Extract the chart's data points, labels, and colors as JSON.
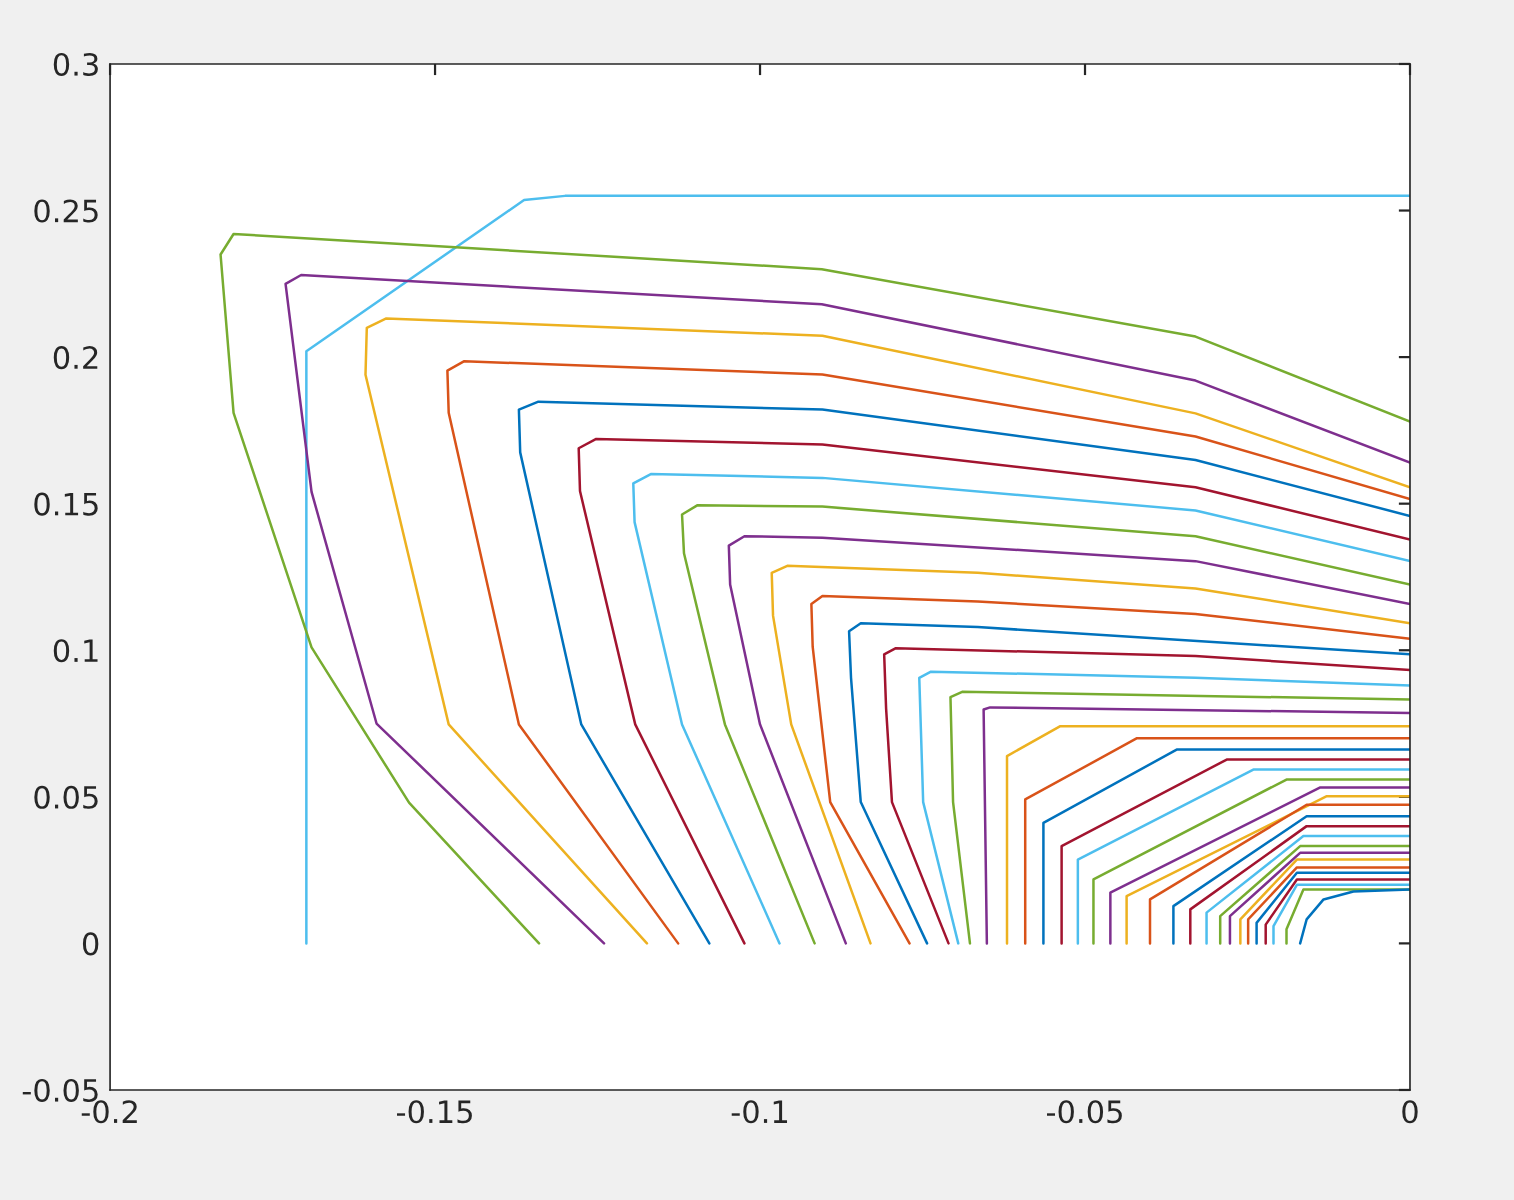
{
  "chart_data": {
    "type": "line",
    "xlim": [
      -0.2,
      0
    ],
    "ylim": [
      -0.05,
      0.3
    ],
    "xticks": [
      -0.2,
      -0.15,
      -0.1,
      -0.05,
      0
    ],
    "yticks": [
      -0.05,
      0,
      0.05,
      0.1,
      0.15,
      0.2,
      0.25,
      0.3
    ],
    "grid": false,
    "marker": "none",
    "line_style": "solid",
    "series": [
      {
        "color": "#4dbeee",
        "x": [
          -0.1698,
          -0.1698,
          -0.1363,
          -0.13,
          0
        ],
        "values": [
          0,
          0.202,
          0.2536,
          0.255,
          0.255
        ]
      },
      {
        "color": "#77ac30",
        "x": [
          -0.134,
          -0.154,
          -0.169,
          -0.181,
          -0.183,
          -0.181,
          -0.0905,
          -0.033,
          0
        ],
        "values": [
          0,
          0.048,
          0.101,
          0.181,
          0.235,
          0.242,
          0.23,
          0.207,
          0.178
        ]
      },
      {
        "color": "#7e2f8e",
        "x": [
          -0.124,
          -0.159,
          -0.169,
          -0.173,
          -0.1706,
          -0.0905,
          -0.033,
          0
        ],
        "values": [
          0,
          0.075,
          0.154,
          0.225,
          0.228,
          0.218,
          0.192,
          0.164
        ]
      },
      {
        "color": "#edb120",
        "x": [
          -0.1174,
          -0.1479,
          -0.1607,
          -0.1605,
          -0.1575,
          -0.0904,
          -0.033,
          0
        ],
        "values": [
          0,
          0.0747,
          0.194,
          0.21,
          0.2132,
          0.2073,
          0.1808,
          0.1556
        ]
      },
      {
        "color": "#d95319",
        "x": [
          -0.1126,
          -0.1371,
          -0.1479,
          -0.1481,
          -0.1455,
          -0.0904,
          -0.033,
          0
        ],
        "values": [
          0,
          0.0747,
          0.181,
          0.1954,
          0.1986,
          0.1941,
          0.1729,
          0.1516
        ]
      },
      {
        "color": "#0072bd",
        "x": [
          -0.1078,
          -0.1275,
          -0.1369,
          -0.1371,
          -0.1341,
          -0.0904,
          -0.033,
          0
        ],
        "values": [
          0,
          0.0747,
          0.1675,
          0.1821,
          0.1848,
          0.1821,
          0.1649,
          0.1458
        ]
      },
      {
        "color": "#a2142f",
        "x": [
          -0.1024,
          -0.1192,
          -0.1277,
          -0.1279,
          -0.1252,
          -0.0904,
          -0.033,
          0
        ],
        "values": [
          0,
          0.0747,
          0.1543,
          0.1689,
          0.1721,
          0.1702,
          0.1556,
          0.1378
        ]
      },
      {
        "color": "#4dbeee",
        "x": [
          -0.097,
          -0.112,
          -0.1193,
          -0.1195,
          -0.1168,
          -0.0904,
          -0.033,
          0
        ],
        "values": [
          0,
          0.0747,
          0.1437,
          0.1569,
          0.1601,
          0.1588,
          0.1477,
          0.1304
        ]
      },
      {
        "color": "#77ac30",
        "x": [
          -0.0916,
          -0.1054,
          -0.1117,
          -0.112,
          -0.1096,
          -0.0904,
          -0.033,
          0
        ],
        "values": [
          0,
          0.0747,
          0.1331,
          0.1463,
          0.1495,
          0.149,
          0.1389,
          0.1224
        ]
      },
      {
        "color": "#7e2f8e",
        "x": [
          -0.0868,
          -0.1,
          -0.1046,
          -0.1048,
          -0.1024,
          -0.0904,
          -0.033,
          0
        ],
        "values": [
          0,
          0.0747,
          0.1224,
          0.1357,
          0.1389,
          0.1384,
          0.1304,
          0.1158
        ]
      },
      {
        "color": "#edb120",
        "x": [
          -0.083,
          -0.0952,
          -0.098,
          -0.0982,
          -0.0958,
          -0.0665,
          -0.033,
          0
        ],
        "values": [
          0,
          0.0747,
          0.1118,
          0.1264,
          0.1288,
          0.1264,
          0.1211,
          0.1092
        ]
      },
      {
        "color": "#d95319",
        "x": [
          -0.077,
          -0.0892,
          -0.0919,
          -0.0921,
          -0.0904,
          -0.0665,
          -0.033,
          0
        ],
        "values": [
          0,
          0.0482,
          0.1012,
          0.1158,
          0.1185,
          0.1166,
          0.1124,
          0.1039
        ]
      },
      {
        "color": "#0072bd",
        "x": [
          -0.0743,
          -0.0845,
          -0.086,
          -0.0863,
          -0.0845,
          -0.0665,
          0
        ],
        "values": [
          0,
          0.0482,
          0.0906,
          0.1065,
          0.1092,
          0.1079,
          0.0986
        ]
      },
      {
        "color": "#a2142f",
        "x": [
          -0.071,
          -0.0797,
          -0.0806,
          -0.0809,
          -0.0791,
          -0.033,
          0
        ],
        "values": [
          0,
          0.0482,
          0.08,
          0.0986,
          0.1007,
          0.098,
          0.0933
        ]
      },
      {
        "color": "#4dbeee",
        "x": [
          -0.0695,
          -0.0749,
          -0.0755,
          -0.0737,
          -0.033,
          0
        ],
        "values": [
          0,
          0.0482,
          0.0906,
          0.0927,
          0.0906,
          0.088
        ]
      },
      {
        "color": "#77ac30",
        "x": [
          -0.0677,
          -0.0703,
          -0.0707,
          -0.0689,
          0
        ],
        "values": [
          0,
          0.0482,
          0.084,
          0.0858,
          0.0832
        ]
      },
      {
        "color": "#7e2f8e",
        "x": [
          -0.0651,
          -0.0656,
          -0.0646,
          0
        ],
        "values": [
          0,
          0.0798,
          0.0805,
          0.0786
        ]
      },
      {
        "color": "#edb120",
        "x": [
          -0.062,
          -0.062,
          -0.0538,
          0
        ],
        "values": [
          0,
          0.0639,
          0.0741,
          0.0741
        ]
      },
      {
        "color": "#d95319",
        "x": [
          -0.0592,
          -0.0592,
          -0.042,
          0
        ],
        "values": [
          0,
          0.0491,
          0.07,
          0.07
        ]
      },
      {
        "color": "#0072bd",
        "x": [
          -0.0564,
          -0.0564,
          -0.0359,
          0
        ],
        "values": [
          0,
          0.0411,
          0.0661,
          0.0661
        ]
      },
      {
        "color": "#a2142f",
        "x": [
          -0.0536,
          -0.0536,
          -0.0282,
          0
        ],
        "values": [
          0,
          0.0332,
          0.0627,
          0.0627
        ]
      },
      {
        "color": "#4dbeee",
        "x": [
          -0.0511,
          -0.0511,
          -0.0241,
          0
        ],
        "values": [
          0,
          0.0286,
          0.0593,
          0.0593
        ]
      },
      {
        "color": "#77ac30",
        "x": [
          -0.0487,
          -0.0487,
          -0.019,
          0
        ],
        "values": [
          0,
          0.0218,
          0.0559,
          0.0559
        ]
      },
      {
        "color": "#7e2f8e",
        "x": [
          -0.0461,
          -0.0461,
          -0.0138,
          0
        ],
        "values": [
          0,
          0.0173,
          0.0532,
          0.0532
        ]
      },
      {
        "color": "#edb120",
        "x": [
          -0.0436,
          -0.0436,
          -0.0128,
          0
        ],
        "values": [
          0,
          0.0161,
          0.0502,
          0.0502
        ]
      },
      {
        "color": "#d95319",
        "x": [
          -0.04,
          -0.04,
          -0.0159,
          0
        ],
        "values": [
          0,
          0.015,
          0.0473,
          0.0473
        ]
      },
      {
        "color": "#0072bd",
        "x": [
          -0.0364,
          -0.0364,
          -0.0159,
          0
        ],
        "values": [
          0,
          0.0127,
          0.0434,
          0.0434
        ]
      },
      {
        "color": "#a2142f",
        "x": [
          -0.0338,
          -0.0338,
          -0.0159,
          0
        ],
        "values": [
          0,
          0.0116,
          0.04,
          0.04
        ]
      },
      {
        "color": "#4dbeee",
        "x": [
          -0.0313,
          -0.0313,
          -0.0164,
          0
        ],
        "values": [
          0,
          0.0105,
          0.0366,
          0.0366
        ]
      },
      {
        "color": "#77ac30",
        "x": [
          -0.0292,
          -0.0292,
          -0.0169,
          0
        ],
        "values": [
          0,
          0.0093,
          0.0332,
          0.0332
        ]
      },
      {
        "color": "#7e2f8e",
        "x": [
          -0.0277,
          -0.0277,
          -0.0169,
          0
        ],
        "values": [
          0,
          0.0093,
          0.0309,
          0.0309
        ]
      },
      {
        "color": "#edb120",
        "x": [
          -0.0261,
          -0.0261,
          -0.0174,
          0
        ],
        "values": [
          0,
          0.0082,
          0.0286,
          0.0286
        ]
      },
      {
        "color": "#d95319",
        "x": [
          -0.0249,
          -0.0249,
          -0.0174,
          0
        ],
        "values": [
          0,
          0.0082,
          0.0259,
          0.0259
        ]
      },
      {
        "color": "#0072bd",
        "x": [
          -0.0236,
          -0.0236,
          -0.0174,
          0
        ],
        "values": [
          0,
          0.007,
          0.0241,
          0.0241
        ]
      },
      {
        "color": "#a2142f",
        "x": [
          -0.0222,
          -0.0222,
          -0.0174,
          0
        ],
        "values": [
          0,
          0.0064,
          0.0218,
          0.0218
        ]
      },
      {
        "color": "#4dbeee",
        "x": [
          -0.021,
          -0.021,
          -0.0174,
          0
        ],
        "values": [
          0,
          0.0059,
          0.02,
          0.02
        ]
      },
      {
        "color": "#77ac30",
        "x": [
          -0.019,
          -0.019,
          -0.0164,
          0
        ],
        "values": [
          0,
          0.0048,
          0.0184,
          0.0184
        ]
      },
      {
        "color": "#0072bd",
        "x": [
          -0.0169,
          -0.0159,
          -0.0133,
          -0.0087,
          0
        ],
        "values": [
          0,
          0.0082,
          0.015,
          0.0177,
          0.0184
        ]
      }
    ]
  }
}
